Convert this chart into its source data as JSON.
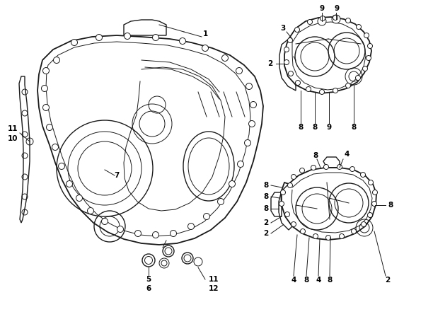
{
  "background_color": "#ffffff",
  "line_color": "#1a1a1a",
  "label_color": "#000000",
  "label_fontsize": 7.5,
  "fig_width": 6.12,
  "fig_height": 4.75,
  "dpi": 100
}
